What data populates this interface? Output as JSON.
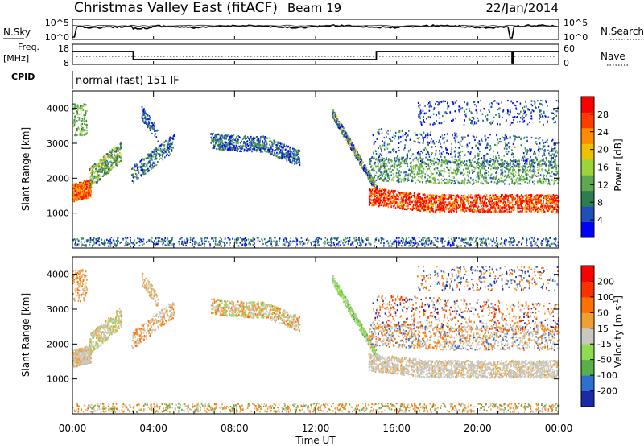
{
  "header": {
    "title": "Christmas Valley East (fitACF)",
    "beam": "Beam 19",
    "date": "22/Jan/2014"
  },
  "chart_data": [
    {
      "type": "line",
      "name": "noise-panel",
      "left_label": "N.Sky",
      "right_label": "N.Search",
      "left_ticks": [
        "10^5",
        "10^0"
      ],
      "right_ticks": [
        "10^5",
        "10^0"
      ]
    },
    {
      "type": "line",
      "name": "frequency-panel",
      "left_label_1": "Freq.",
      "left_label_2": "[MHz]",
      "right_label": "Nave",
      "left_ticks": [
        "18",
        "8"
      ],
      "right_ticks": [
        "60",
        "0"
      ]
    },
    {
      "type": "table",
      "name": "cpid-panel",
      "label": "CPID",
      "value": "normal (fast) 151 IF"
    },
    {
      "type": "heatmap",
      "name": "power-panel",
      "ylabel": "Slant Range [km]",
      "yticks": [
        1000,
        2000,
        3000,
        4000
      ],
      "colorbar_label": "Power [dB]",
      "colorbar_ticks": [
        "28",
        "24",
        "20",
        "16",
        "12",
        "8",
        "4"
      ],
      "colors": [
        "#0000ff",
        "#1f4fb8",
        "#2e7d4f",
        "#5ea84e",
        "#9cd43a",
        "#f0c000",
        "#ff8c00",
        "#ff3c00",
        "#ff0000"
      ]
    },
    {
      "type": "heatmap",
      "name": "velocity-panel",
      "ylabel": "Slant Range [km]",
      "yticks": [
        1000,
        2000,
        3000,
        4000
      ],
      "colorbar_label": "Velocity [m s",
      "colorbar_label_sup": "-1",
      "colorbar_label_end": "]",
      "colorbar_ticks": [
        "200",
        "100",
        "50",
        "15",
        "-15",
        "-50",
        "-100",
        "-200"
      ],
      "colors": [
        "#1a2aa8",
        "#2f6fd0",
        "#57b04a",
        "#8edc50",
        "#c8c8c0",
        "#f0a030",
        "#ff7000",
        "#ff3000",
        "#ff0000"
      ]
    }
  ],
  "time_axis": {
    "ticks": [
      "00:00",
      "04:00",
      "08:00",
      "12:00",
      "16:00",
      "20:00",
      "00:00"
    ],
    "label": "Time UT"
  }
}
